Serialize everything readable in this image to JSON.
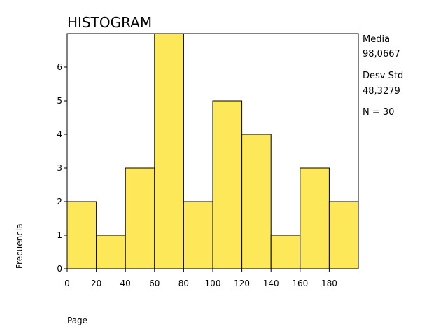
{
  "chart_data": {
    "type": "bar",
    "title": "HISTOGRAM",
    "xlabel": "Page",
    "ylabel": "Frecuencia",
    "bin_edges": [
      0,
      20,
      40,
      60,
      80,
      100,
      120,
      140,
      160,
      180,
      200
    ],
    "values": [
      2,
      1,
      3,
      7,
      2,
      5,
      4,
      1,
      3,
      2
    ],
    "x_ticks": [
      "0",
      "20",
      "40",
      "60",
      "80",
      "100",
      "120",
      "140",
      "160",
      "180"
    ],
    "x_tick_values": [
      0,
      20,
      40,
      60,
      80,
      100,
      120,
      140,
      160,
      180
    ],
    "y_ticks": [
      "0",
      "1",
      "2",
      "3",
      "4",
      "5",
      "6"
    ],
    "y_tick_values": [
      0,
      1,
      2,
      3,
      4,
      5,
      6
    ],
    "xlim": [
      0,
      200
    ],
    "ylim": [
      0,
      7
    ],
    "grid": false,
    "bar_color": "#fde85a",
    "bar_edge_color": "#000000",
    "stats": {
      "mean_label": "Media",
      "mean_value": "98,0667",
      "std_label": "Desv Std",
      "std_value": "48,3279",
      "n_text": "N = 30"
    }
  }
}
